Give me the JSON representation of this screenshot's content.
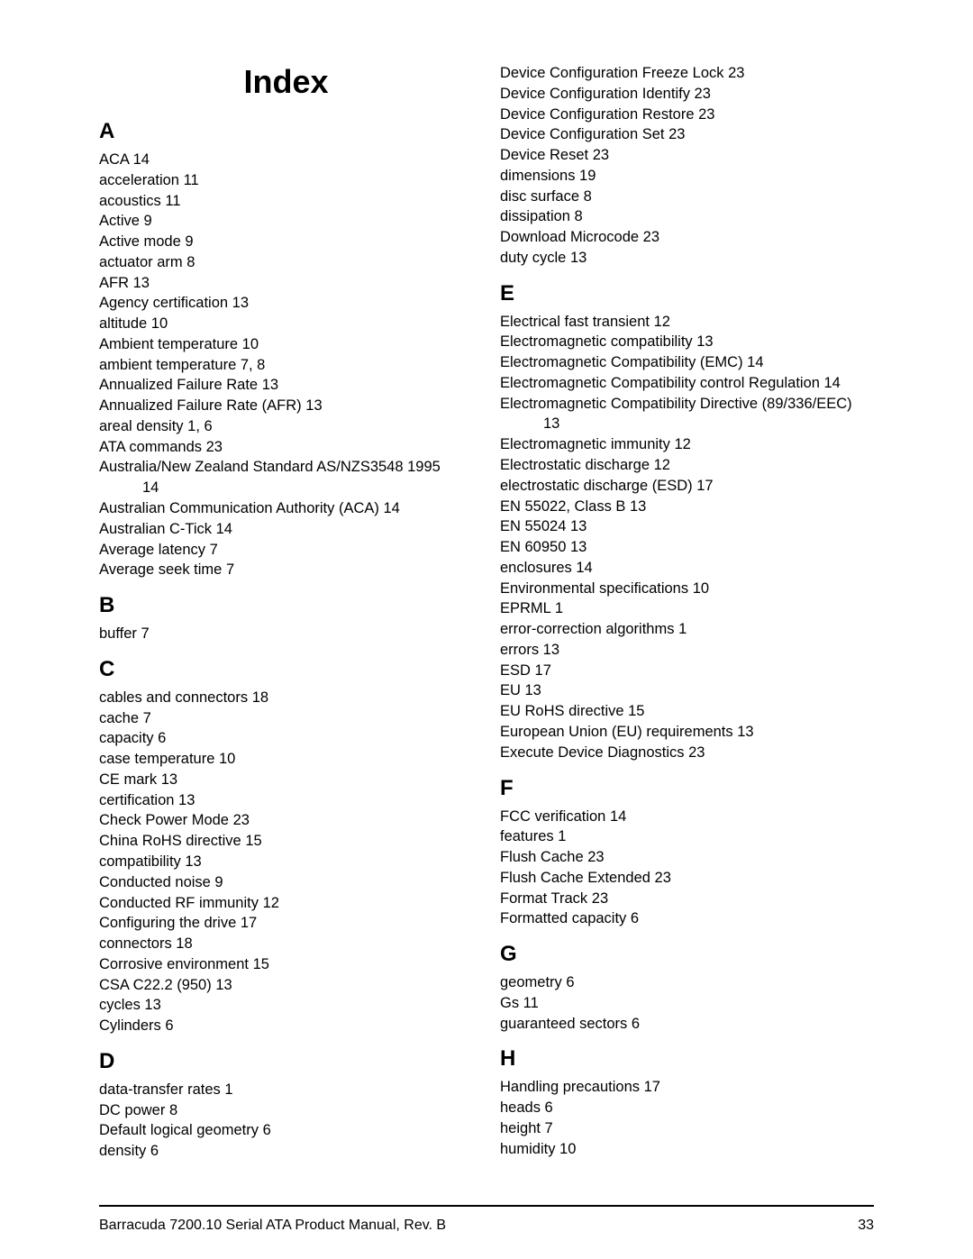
{
  "page": {
    "title": "Index",
    "footer_text": "Barracuda 7200.10 Serial ATA Product Manual, Rev. B",
    "footer_page": "33",
    "colors": {
      "bg": "#ffffff",
      "text": "#000000",
      "rule": "#000000"
    },
    "fonts": {
      "body_pt": 16.5,
      "letter_pt": 24,
      "title_pt": 36
    }
  },
  "left": {
    "title_here": true,
    "sections": [
      {
        "letter": "A",
        "entries": [
          {
            "term": "ACA",
            "pages": "14"
          },
          {
            "term": "acceleration",
            "pages": "11"
          },
          {
            "term": "acoustics",
            "pages": "11"
          },
          {
            "term": "Active",
            "pages": "9"
          },
          {
            "term": "Active mode",
            "pages": "9"
          },
          {
            "term": "actuator arm",
            "pages": "8"
          },
          {
            "term": "AFR",
            "pages": "13"
          },
          {
            "term": "Agency certification",
            "pages": "13"
          },
          {
            "term": "altitude",
            "pages": "10"
          },
          {
            "term": "Ambient temperature",
            "pages": "10"
          },
          {
            "term": "ambient temperature",
            "pages": "7,   8"
          },
          {
            "term": "Annualized Failure Rate",
            "pages": "13"
          },
          {
            "term": "Annualized Failure Rate (AFR)",
            "pages": "13"
          },
          {
            "term": "areal density",
            "pages": "1,   6"
          },
          {
            "term": "ATA commands",
            "pages": "23"
          },
          {
            "term": "Australia/New Zealand Standard AS/NZS3548 1995",
            "wrap_pages": "14"
          },
          {
            "term": "Australian Communication Authority (ACA)",
            "pages": "14"
          },
          {
            "term": "Australian C-Tick",
            "pages": "14"
          },
          {
            "term": "Average latency",
            "pages": "7"
          },
          {
            "term": "Average seek time",
            "pages": "7"
          }
        ]
      },
      {
        "letter": "B",
        "entries": [
          {
            "term": "buffer",
            "pages": "7"
          }
        ]
      },
      {
        "letter": "C",
        "entries": [
          {
            "term": "cables and connectors",
            "pages": "18"
          },
          {
            "term": "cache",
            "pages": "7"
          },
          {
            "term": "capacity",
            "pages": "6"
          },
          {
            "term": "case temperature",
            "pages": "10"
          },
          {
            "term": "CE mark",
            "pages": "13"
          },
          {
            "term": "certification",
            "pages": "13"
          },
          {
            "term": "Check Power Mode",
            "pages": "23"
          },
          {
            "term": "China RoHS directive",
            "pages": "15"
          },
          {
            "term": "compatibility",
            "pages": "13"
          },
          {
            "term": "Conducted noise",
            "pages": "9"
          },
          {
            "term": "Conducted RF immunity",
            "pages": "12"
          },
          {
            "term": "Configuring the drive",
            "pages": "17"
          },
          {
            "term": "connectors",
            "pages": "18"
          },
          {
            "term": "Corrosive environment",
            "pages": "15"
          },
          {
            "term": "CSA C22.2 (950)",
            "pages": "13"
          },
          {
            "term": "cycles",
            "pages": "13"
          },
          {
            "term": "Cylinders",
            "pages": "6"
          }
        ]
      },
      {
        "letter": "D",
        "entries": [
          {
            "term": "data-transfer rates",
            "pages": "1"
          },
          {
            "term": "DC power",
            "pages": "8"
          },
          {
            "term": "Default logical geometry",
            "pages": "6"
          },
          {
            "term": "density",
            "pages": "6"
          }
        ]
      }
    ]
  },
  "right": {
    "sections": [
      {
        "letter": "",
        "entries": [
          {
            "term": "Device Configuration Freeze Lock",
            "pages": "23"
          },
          {
            "term": "Device Configuration Identify",
            "pages": "23"
          },
          {
            "term": "Device Configuration Restore",
            "pages": "23"
          },
          {
            "term": "Device Configuration Set",
            "pages": "23"
          },
          {
            "term": "Device Reset",
            "pages": "23"
          },
          {
            "term": "dimensions",
            "pages": "19"
          },
          {
            "term": "disc surface",
            "pages": "8"
          },
          {
            "term": "dissipation",
            "pages": "8"
          },
          {
            "term": "Download Microcode",
            "pages": "23"
          },
          {
            "term": "duty cycle",
            "pages": "13"
          }
        ]
      },
      {
        "letter": "E",
        "entries": [
          {
            "term": "Electrical fast transient",
            "pages": "12"
          },
          {
            "term": "Electromagnetic compatibility",
            "pages": "13"
          },
          {
            "term": "Electromagnetic Compatibility (EMC)",
            "pages": "14"
          },
          {
            "term": "Electromagnetic Compatibility control Regulation",
            "pages": "14"
          },
          {
            "term": "Electromagnetic Compatibility Directive (89/336/EEC)",
            "wrap_pages": "13"
          },
          {
            "term": "Electromagnetic immunity",
            "pages": "12"
          },
          {
            "term": "Electrostatic discharge",
            "pages": "12"
          },
          {
            "term": "electrostatic discharge (ESD)",
            "pages": "17"
          },
          {
            "term": "EN 55022, Class B",
            "pages": "13"
          },
          {
            "term": "EN 55024",
            "pages": "13"
          },
          {
            "term": "EN 60950",
            "pages": "13"
          },
          {
            "term": "enclosures",
            "pages": "14"
          },
          {
            "term": "Environmental specifications",
            "pages": "10"
          },
          {
            "term": "EPRML",
            "pages": "1"
          },
          {
            "term": "error-correction algorithms",
            "pages": "1"
          },
          {
            "term": "errors",
            "pages": "13"
          },
          {
            "term": "ESD",
            "pages": "17"
          },
          {
            "term": "EU",
            "pages": "13"
          },
          {
            "term": "EU RoHS directive",
            "pages": "15"
          },
          {
            "term": "European Union (EU) requirements",
            "pages": "13"
          },
          {
            "term": "Execute Device Diagnostics",
            "pages": "23"
          }
        ]
      },
      {
        "letter": "F",
        "entries": [
          {
            "term": "FCC verification",
            "pages": "14"
          },
          {
            "term": "features",
            "pages": "1"
          },
          {
            "term": "Flush Cache",
            "pages": "23"
          },
          {
            "term": "Flush Cache Extended",
            "pages": "23"
          },
          {
            "term": "Format Track",
            "pages": "23"
          },
          {
            "term": "Formatted capacity",
            "pages": "6"
          }
        ]
      },
      {
        "letter": "G",
        "entries": [
          {
            "term": "geometry",
            "pages": "6"
          },
          {
            "term": "Gs",
            "pages": "11"
          },
          {
            "term": "guaranteed sectors",
            "pages": "6"
          }
        ]
      },
      {
        "letter": "H",
        "entries": [
          {
            "term": "Handling precautions",
            "pages": "17"
          },
          {
            "term": "heads",
            "pages": "6"
          },
          {
            "term": "height",
            "pages": "7"
          },
          {
            "term": "humidity",
            "pages": "10"
          }
        ]
      }
    ]
  }
}
